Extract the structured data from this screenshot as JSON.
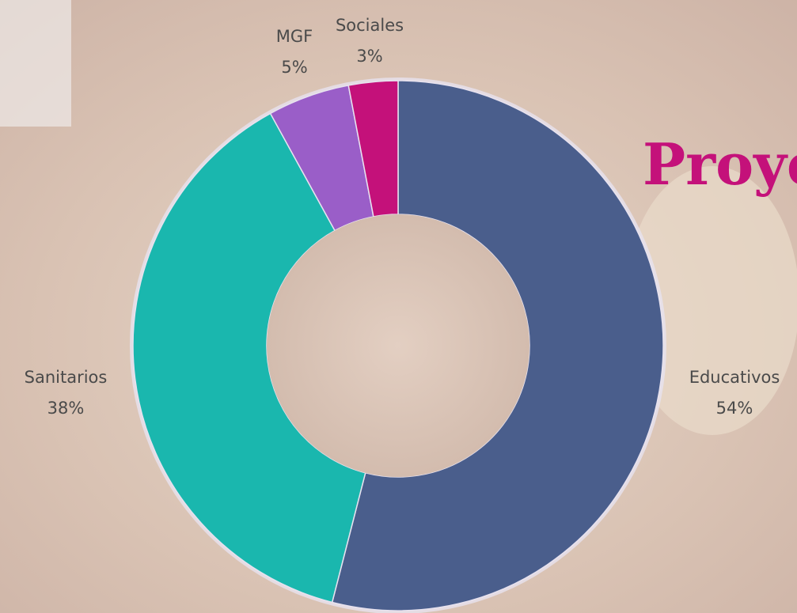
{
  "chart_data": {
    "type": "donut",
    "title": "Proye",
    "categories": [
      "Educativos",
      "Sanitarios",
      "MGF",
      "Sociales"
    ],
    "values": [
      54,
      38,
      5,
      3
    ],
    "value_labels": [
      "54%",
      "38%",
      "5%",
      "3%"
    ],
    "colors": [
      "#4a5e8c",
      "#1ab7ae",
      "#9a5ec8",
      "#c4117a"
    ]
  }
}
